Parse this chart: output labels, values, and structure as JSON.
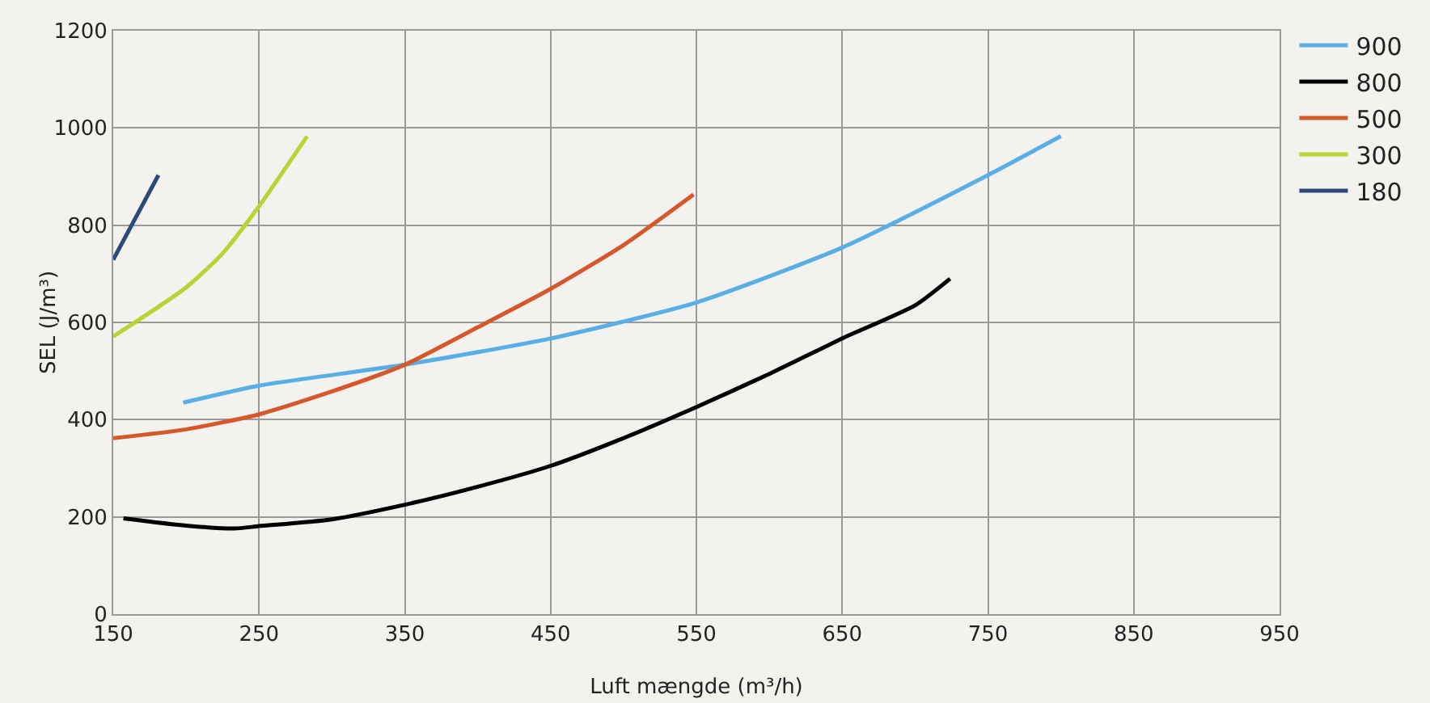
{
  "chart_data": {
    "type": "line",
    "xlabel": "Luft mængde (m³/h)",
    "ylabel": "SEL (J/m³)",
    "xlim": [
      150,
      950
    ],
    "xticks": [
      150,
      250,
      350,
      450,
      550,
      650,
      750,
      850,
      950
    ],
    "ylim": [
      0,
      1200
    ],
    "yticks": [
      0,
      200,
      400,
      600,
      800,
      1000,
      1200
    ],
    "grid": true,
    "legend": "top right",
    "marker": "none",
    "line_style": "solid",
    "series": [
      {
        "name": "900",
        "color": "#5aaee6",
        "x": [
          198,
          250,
          350,
          450,
          550,
          650,
          750,
          800
        ],
        "values": [
          435,
          470,
          513,
          567,
          641,
          754,
          903,
          983
        ]
      },
      {
        "name": "800",
        "color": "#000000",
        "x": [
          157,
          200,
          233,
          250,
          300,
          350,
          400,
          450,
          500,
          550,
          600,
          650,
          700,
          724
        ],
        "values": [
          197,
          182,
          176,
          181,
          195,
          225,
          262,
          305,
          362,
          426,
          494,
          567,
          635,
          690
        ]
      },
      {
        "name": "500",
        "color": "#d4582a",
        "x": [
          150,
          200,
          250,
          300,
          350,
          400,
          450,
          500,
          548
        ],
        "values": [
          362,
          380,
          411,
          458,
          513,
          590,
          669,
          759,
          863
        ]
      },
      {
        "name": "300",
        "color": "#b8d433",
        "x": [
          150,
          200,
          225,
          250,
          283
        ],
        "values": [
          571,
          672,
          742,
          839,
          983
        ]
      },
      {
        "name": "180",
        "color": "#2b4a7a",
        "x": [
          150,
          181
        ],
        "values": [
          729,
          903
        ]
      }
    ]
  }
}
